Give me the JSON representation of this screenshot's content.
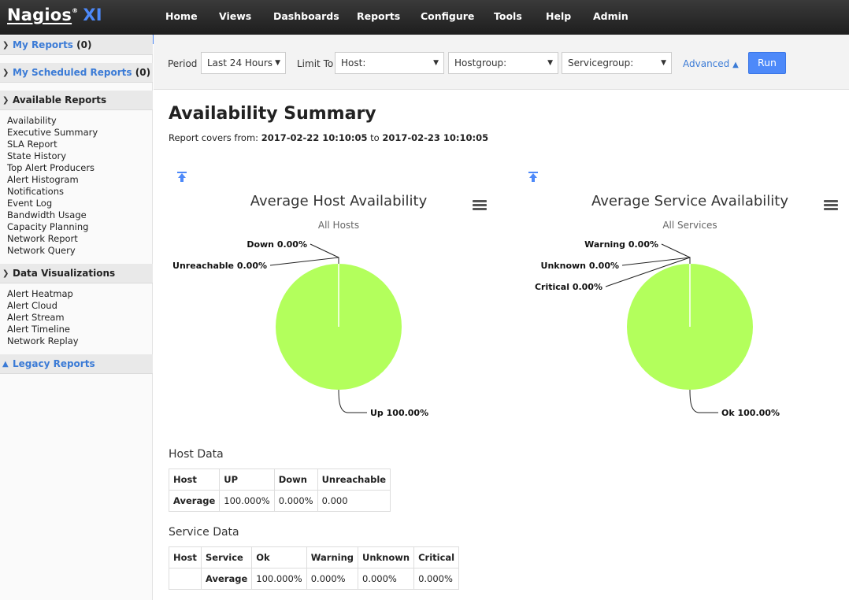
{
  "app": {
    "brand": "Nagios",
    "brand_suffix": "XI",
    "reg": "®"
  },
  "nav": [
    "Home",
    "Views",
    "Dashboards",
    "Reports",
    "Configure",
    "Tools",
    "Help",
    "Admin"
  ],
  "sidebar": {
    "my_reports": {
      "label": "My Reports",
      "count": "(0)"
    },
    "my_scheduled": {
      "label": "My Scheduled Reports",
      "count": "(0)"
    },
    "available_reports": {
      "label": "Available Reports",
      "items": [
        "Availability",
        "Executive Summary",
        "SLA Report",
        "State History",
        "Top Alert Producers",
        "Alert Histogram",
        "Notifications",
        "Event Log",
        "Bandwidth Usage",
        "Capacity Planning",
        "Network Report",
        "Network Query"
      ]
    },
    "data_visualizations": {
      "label": "Data Visualizations",
      "items": [
        "Alert Heatmap",
        "Alert Cloud",
        "Alert Stream",
        "Alert Timeline",
        "Network Replay"
      ]
    },
    "legacy_reports": {
      "label": "Legacy Reports"
    }
  },
  "filters": {
    "period_label": "Period",
    "period_value": "Last 24 Hours",
    "limit_label": "Limit To",
    "host_value": "Host:",
    "hostgroup_value": "Hostgroup:",
    "servicegroup_value": "Servicegroup:",
    "advanced_label": "Advanced",
    "run_label": "Run"
  },
  "report": {
    "title": "Availability Summary",
    "covers_prefix": "Report covers from:",
    "from": "2017-02-22 10:10:05",
    "to_word": "to",
    "to": "2017-02-23 10:10:05"
  },
  "colors": {
    "pie_fill": "#b3ff5c",
    "accent": "#4d89f9"
  },
  "chart_data": [
    {
      "type": "pie",
      "title": "Average Host Availability",
      "subtitle": "All Hosts",
      "slices": [
        {
          "name": "Up",
          "value": 100.0,
          "label": "Up 100.00%"
        },
        {
          "name": "Down",
          "value": 0.0,
          "label": "Down 0.00%"
        },
        {
          "name": "Unreachable",
          "value": 0.0,
          "label": "Unreachable 0.00%"
        }
      ]
    },
    {
      "type": "pie",
      "title": "Average Service Availability",
      "subtitle": "All Services",
      "slices": [
        {
          "name": "Ok",
          "value": 100.0,
          "label": "Ok 100.00%"
        },
        {
          "name": "Warning",
          "value": 0.0,
          "label": "Warning 0.00%"
        },
        {
          "name": "Unknown",
          "value": 0.0,
          "label": "Unknown 0.00%"
        },
        {
          "name": "Critical",
          "value": 0.0,
          "label": "Critical 0.00%"
        }
      ]
    }
  ],
  "host_data": {
    "caption": "Host Data",
    "headers": [
      "Host",
      "UP",
      "Down",
      "Unreachable"
    ],
    "row": [
      "Average",
      "100.000%",
      "0.000%",
      "0.000"
    ]
  },
  "service_data": {
    "caption": "Service Data",
    "headers": [
      "Host",
      "Service",
      "Ok",
      "Warning",
      "Unknown",
      "Critical"
    ],
    "row": [
      "",
      "Average",
      "100.000%",
      "0.000%",
      "0.000%",
      "0.000%"
    ]
  }
}
